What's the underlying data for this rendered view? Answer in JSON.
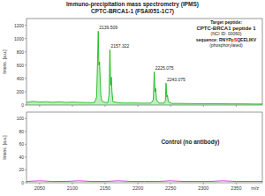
{
  "chart_data": [
    {
      "type": "line",
      "title": "Immuno-precipitation mass spectrometry (IPMS)",
      "subtitle": "CPTC-BRCA1-1 (FSAI051-1C7)",
      "ylabel": "Intens. [a.u.]",
      "x": [
        2030,
        2040,
        2050,
        2060,
        2070,
        2080,
        2090,
        2100,
        2110,
        2120,
        2128,
        2134,
        2137,
        2138.5,
        2139.5,
        2140.5,
        2141.5,
        2142.5,
        2143.5,
        2145,
        2150,
        2154,
        2156,
        2157.3,
        2158.5,
        2159.5,
        2160.5,
        2162,
        2170,
        2180,
        2190,
        2200,
        2210,
        2220,
        2223.5,
        2225,
        2226.2,
        2227.2,
        2228.5,
        2232,
        2240,
        2242,
        2243,
        2244.2,
        2245.2,
        2246.5,
        2252,
        2260,
        2280,
        2300,
        2320,
        2340,
        2360,
        2380,
        2390
      ],
      "values": [
        40,
        55,
        45,
        50,
        42,
        48,
        40,
        45,
        40,
        38,
        35,
        40,
        120,
        700,
        1110,
        600,
        650,
        400,
        150,
        60,
        40,
        35,
        150,
        830,
        300,
        420,
        200,
        50,
        35,
        30,
        32,
        30,
        28,
        30,
        80,
        500,
        200,
        250,
        80,
        30,
        30,
        70,
        330,
        120,
        150,
        50,
        25,
        25,
        22,
        20,
        20,
        18,
        18,
        15,
        15
      ],
      "color": "#00b400",
      "xlim": [
        2030,
        2390
      ],
      "ylim": [
        0,
        1300
      ],
      "xticks": [
        2050,
        2100,
        2150,
        2200,
        2250,
        2300,
        2350
      ],
      "yticks": [
        0,
        200,
        400,
        600,
        800,
        1000,
        1200
      ],
      "tick_labels": "y",
      "annotations": [
        {
          "text": "2139.509",
          "x": 2139.5,
          "y": 1110
        },
        {
          "text": "2157.322",
          "x": 2157.3,
          "y": 830
        },
        {
          "text": "2225.075",
          "x": 2225,
          "y": 500
        },
        {
          "text": "2243.075",
          "x": 2243,
          "y": 330
        }
      ],
      "text_box": [
        "Target peptide:",
        "CPTC-BRCA1 peptide 1",
        "(NCI ID: 00060)",
        [
          "sequence: RNYP",
          "pS",
          "QEELIKV"
        ],
        "(phosphorylated)"
      ]
    },
    {
      "type": "line",
      "ylabel": "Intens. [a.u.]",
      "xlabel": "m/z",
      "x": [
        2030,
        2050,
        2070,
        2090,
        2110,
        2130,
        2150,
        2170,
        2190,
        2210,
        2230,
        2250,
        2270,
        2290,
        2310,
        2330,
        2350,
        2370,
        2390
      ],
      "values": [
        2,
        3,
        2,
        2,
        3,
        2,
        2,
        3,
        2,
        2,
        2,
        3,
        2,
        2,
        2,
        3,
        2,
        2,
        2
      ],
      "color": "#cc00cc",
      "xlim": [
        2030,
        2390
      ],
      "ylim": [
        0,
        110
      ],
      "xticks": [
        2050,
        2100,
        2150,
        2200,
        2250,
        2300,
        2350
      ],
      "yticks": [
        0,
        20,
        40,
        60,
        80,
        100
      ],
      "annotations": [
        {
          "text": "Control (no antibody)",
          "x": 2280,
          "y": 60
        }
      ]
    }
  ]
}
